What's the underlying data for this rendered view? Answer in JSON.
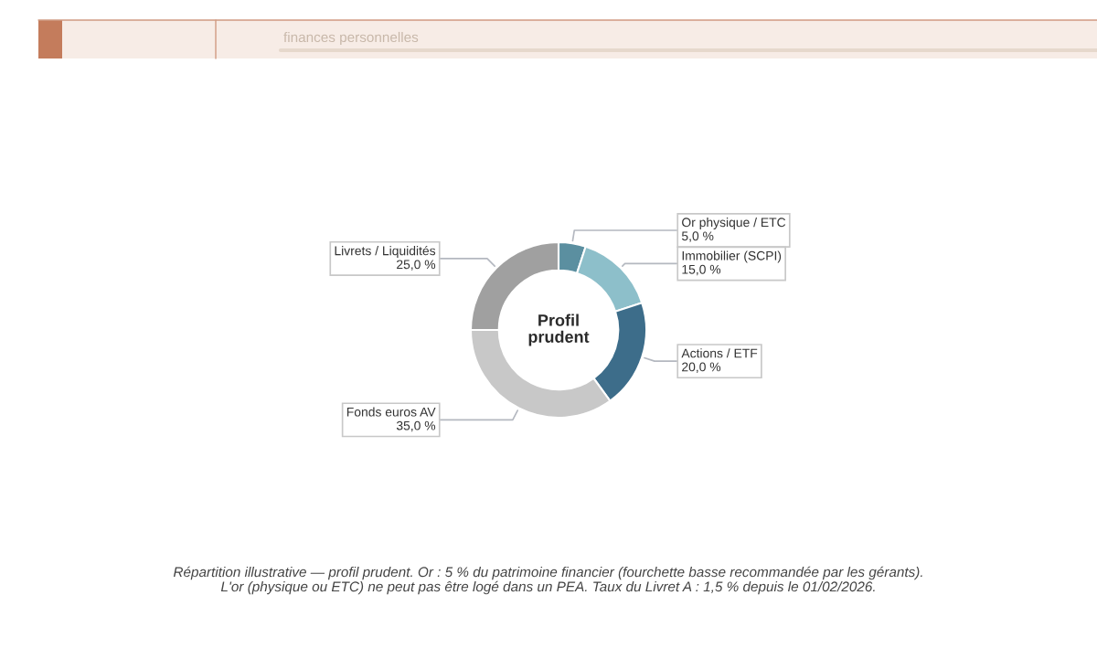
{
  "chart_data": {
    "type": "donut",
    "title": "Profil prudent",
    "subtitle": "finances personnelles",
    "categories": [
      "Or physique / ETC",
      "Immobilier (SCPI)",
      "Actions / ETF",
      "Fonds euros AV",
      "Livrets / Liquidités"
    ],
    "values": [
      5,
      15,
      20,
      35,
      25
    ],
    "value_labels": [
      "5,0 %",
      "15,0 %",
      "20,0 %",
      "35,0 %",
      "25,0 %"
    ],
    "colors": [
      "#5b8fa0",
      "#8dbfca",
      "#3d6d8a",
      "#c8c8c8",
      "#a0a0a0"
    ],
    "annotations": [
      "Répartition illustrative — profil prudent. Or : 5 % du patrimoine financier (fourchette basse recommandée par les gérants).",
      "L'or (physique ou ETC) ne peut pas être logé dans un PEA. Taux du Livret A : 1,5 % depuis le 01/02/2026."
    ]
  }
}
